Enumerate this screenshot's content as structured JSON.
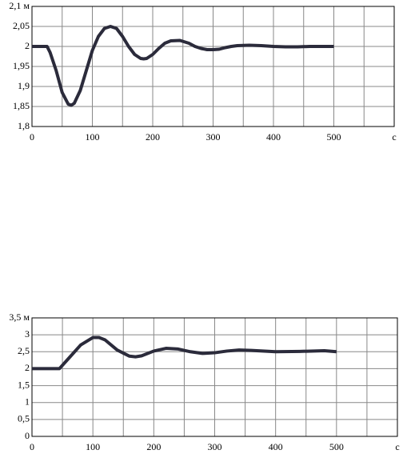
{
  "chart_data": [
    {
      "type": "line",
      "xlim": [
        0,
        600
      ],
      "ylim": [
        1.8,
        2.1
      ],
      "xticks": [
        0,
        100,
        200,
        300,
        400,
        500,
        {
          "value": 600,
          "label": "с"
        }
      ],
      "xminorticks": [
        50,
        150,
        250,
        350,
        450,
        550
      ],
      "yticks": [
        {
          "value": 1.8,
          "label": "1,8"
        },
        {
          "value": 1.85,
          "label": "1,85"
        },
        {
          "value": 1.9,
          "label": "1,9"
        },
        {
          "value": 1.95,
          "label": "1,95"
        },
        2,
        {
          "value": 2.05,
          "label": "2,05"
        },
        {
          "value": 2.1,
          "label": "2,1 м"
        }
      ],
      "grid": true,
      "x": [
        0,
        10,
        20,
        25,
        30,
        40,
        50,
        60,
        65,
        70,
        80,
        90,
        100,
        110,
        120,
        130,
        140,
        150,
        160,
        170,
        180,
        185,
        190,
        200,
        210,
        220,
        230,
        245,
        260,
        270,
        280,
        290,
        300,
        310,
        320,
        330,
        340,
        360,
        380,
        400,
        420,
        440,
        460,
        480,
        500
      ],
      "series": [
        {
          "color": "#2b2b3b",
          "values": [
            2,
            2,
            2,
            2,
            1.985,
            1.94,
            1.885,
            1.856,
            1.853,
            1.858,
            1.89,
            1.94,
            1.99,
            2.025,
            2.045,
            2.05,
            2.045,
            2.025,
            2.0,
            1.98,
            1.97,
            1.969,
            1.97,
            1.98,
            1.995,
            2.008,
            2.014,
            2.015,
            2.008,
            2.0,
            1.995,
            1.992,
            1.992,
            1.993,
            1.997,
            2.0,
            2.002,
            2.003,
            2.002,
            2.0,
            1.999,
            1.999,
            2.0,
            2.0,
            2.0
          ]
        }
      ]
    },
    {
      "type": "line",
      "xlim": [
        0,
        600
      ],
      "ylim": [
        0,
        3.5
      ],
      "xticks": [
        0,
        100,
        200,
        300,
        400,
        500,
        {
          "value": 600,
          "label": "с"
        }
      ],
      "xminorticks": [
        50,
        150,
        250,
        350,
        450,
        550
      ],
      "yticks": [
        0,
        {
          "value": 0.5,
          "label": "0,5"
        },
        1,
        {
          "value": 1.5,
          "label": "1,5"
        },
        2,
        {
          "value": 2.5,
          "label": "2,5"
        },
        3,
        {
          "value": 3.5,
          "label": "3,5 м"
        }
      ],
      "grid": true,
      "x": [
        0,
        20,
        40,
        45,
        60,
        80,
        100,
        110,
        120,
        140,
        160,
        170,
        180,
        200,
        220,
        240,
        260,
        280,
        300,
        320,
        340,
        360,
        400,
        440,
        480,
        500
      ],
      "series": [
        {
          "color": "#2b2b3b",
          "values": [
            2,
            2,
            2,
            2,
            2.3,
            2.7,
            2.92,
            2.92,
            2.85,
            2.55,
            2.37,
            2.35,
            2.38,
            2.52,
            2.6,
            2.58,
            2.5,
            2.45,
            2.47,
            2.52,
            2.55,
            2.54,
            2.5,
            2.51,
            2.53,
            2.5
          ]
        }
      ]
    }
  ]
}
